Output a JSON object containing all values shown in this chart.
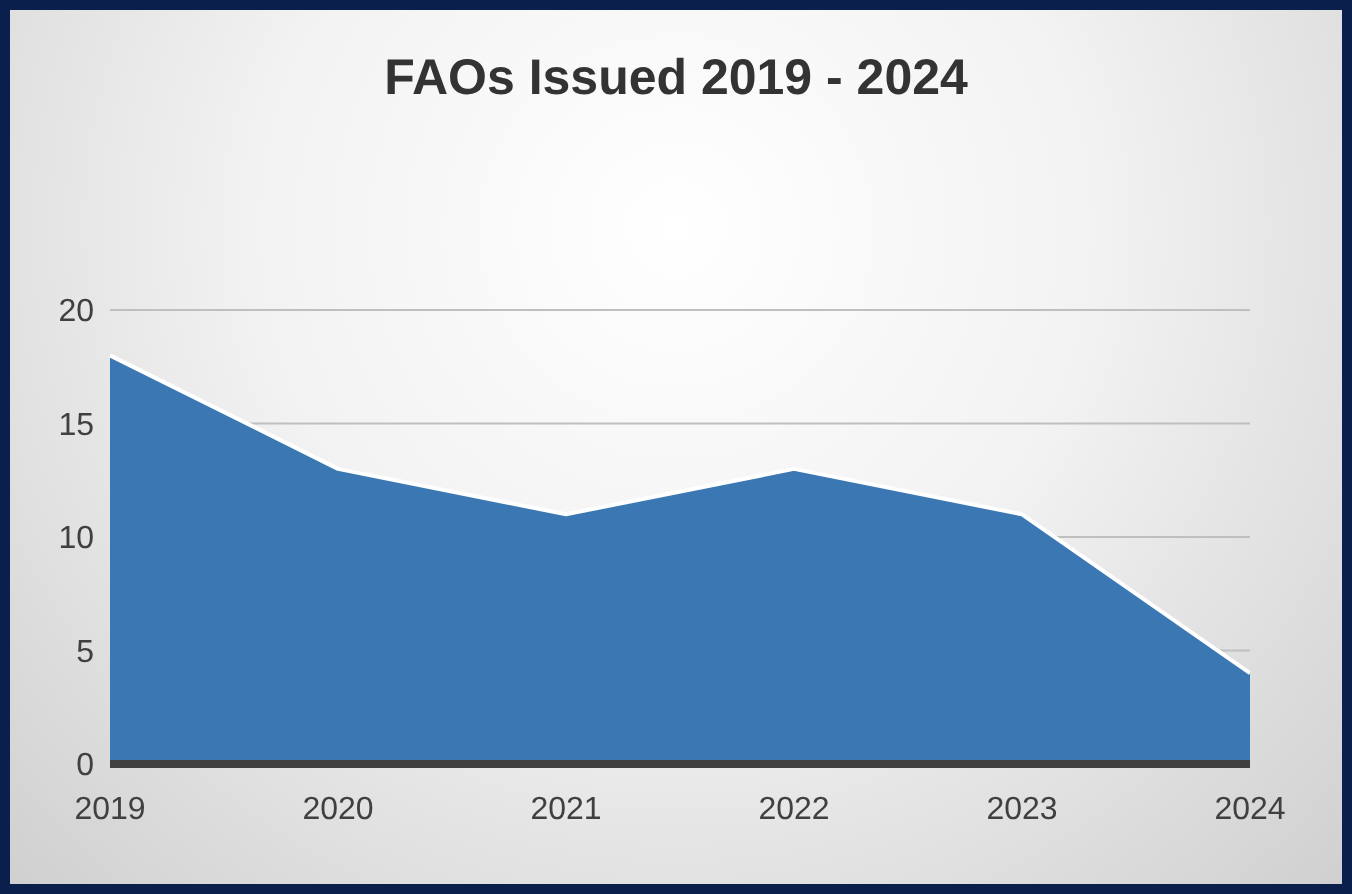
{
  "chart_data": {
    "type": "area",
    "title": "FAOs Issued 2019 - 2024",
    "categories": [
      "2019",
      "2020",
      "2021",
      "2022",
      "2023",
      "2024"
    ],
    "values": [
      18,
      13,
      11,
      13,
      11,
      4
    ],
    "color": "#3a77b3",
    "ylim": [
      0,
      20
    ],
    "yticks": [
      0,
      5,
      10,
      15,
      20
    ],
    "grid": "y"
  }
}
